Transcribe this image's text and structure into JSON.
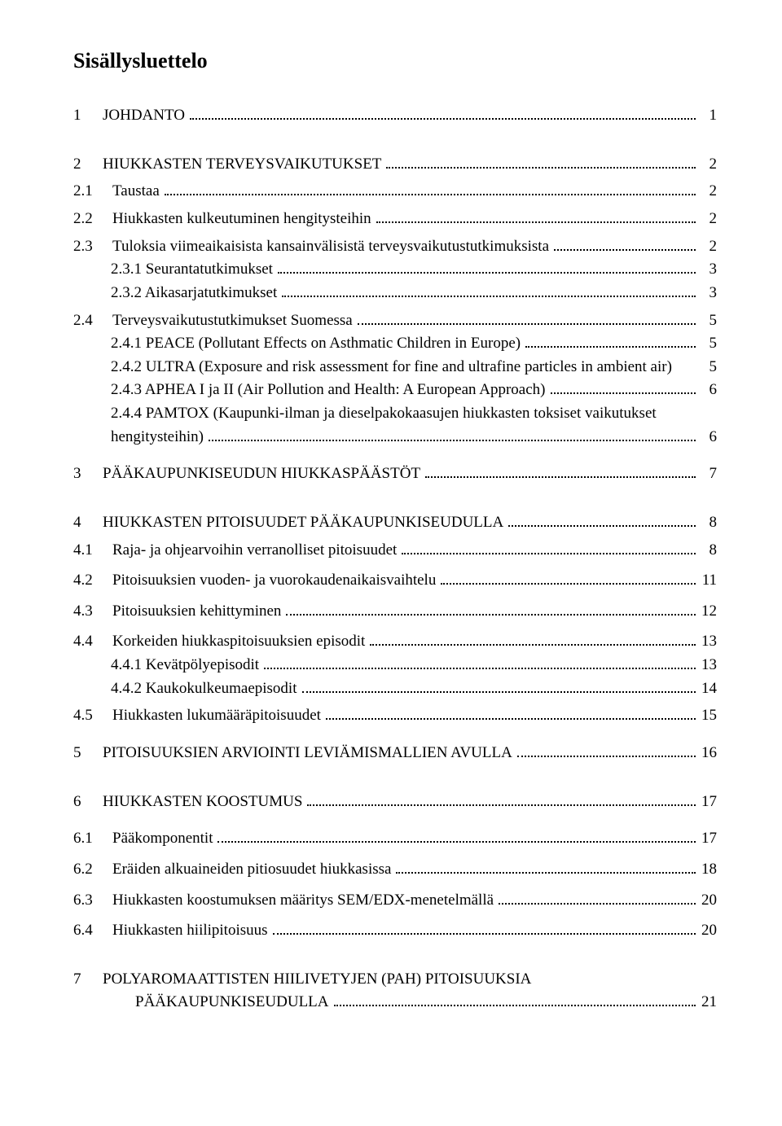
{
  "title": "Sisällysluettelo",
  "toc": [
    {
      "num": "1",
      "text": "JOHDANTO",
      "page": "1",
      "indent": 0,
      "numClass": "num",
      "gapBefore": 0,
      "gapAfter": 30
    },
    {
      "num": "2",
      "text": "HIUKKASTEN TERVEYSVAIKUTUKSET",
      "page": "2",
      "indent": 0,
      "numClass": "num",
      "gapBefore": 0,
      "gapAfter": 4
    },
    {
      "num": "2.1",
      "text": "Taustaa",
      "page": "2",
      "indent": 0,
      "numClass": "num-wide",
      "gapBefore": 0,
      "gapAfter": 4
    },
    {
      "num": "2.2",
      "text": "Hiukkasten kulkeutuminen hengitysteihin",
      "page": "2",
      "indent": 0,
      "numClass": "num-wide",
      "gapBefore": 0,
      "gapAfter": 4
    },
    {
      "num": "2.3",
      "text": "Tuloksia viimeaikaisista kansainvälisistä terveysvaikutustutkimuksista",
      "page": "2",
      "indent": 0,
      "numClass": "num-wide",
      "gapBefore": 0,
      "gapAfter": 0
    },
    {
      "num": "",
      "text": "2.3.1 Seurantatutkimukset",
      "page": "3",
      "indent": 1,
      "numClass": "",
      "gapBefore": 0,
      "gapAfter": 0
    },
    {
      "num": "",
      "text": "2.3.2 Aikasarjatutkimukset",
      "page": "3",
      "indent": 1,
      "numClass": "",
      "gapBefore": 0,
      "gapAfter": 4
    },
    {
      "num": "2.4",
      "text": "Terveysvaikutustutkimukset Suomessa",
      "page": "5",
      "indent": 0,
      "numClass": "num-wide",
      "gapBefore": 0,
      "gapAfter": 0
    },
    {
      "num": "",
      "text": "2.4.1 PEACE (Pollutant Effects on Asthmatic Children in Europe)",
      "page": "5",
      "indent": 1,
      "numClass": "",
      "gapBefore": 0,
      "gapAfter": 0
    },
    {
      "num": "",
      "text": "2.4.2 ULTRA (Exposure and risk assessment for fine and ultrafine particles in ambient air)",
      "page": "5",
      "indent": 1,
      "numClass": "",
      "gapBefore": 0,
      "gapAfter": 0,
      "noLeader": true
    },
    {
      "num": "",
      "text": "2.4.3 APHEA I ja II (Air Pollution and Health: A European Approach)",
      "page": "6",
      "indent": 1,
      "numClass": "",
      "gapBefore": 0,
      "gapAfter": 0
    },
    {
      "num": "",
      "text": "2.4.4 PAMTOX (Kaupunki-ilman ja dieselpakokaasujen hiukkasten toksiset vaikutukset",
      "page": "",
      "indent": 1,
      "numClass": "",
      "gapBefore": 0,
      "gapAfter": 0,
      "noPage": true,
      "noLeader": true
    },
    {
      "num": "",
      "text": "hengitysteihin)",
      "page": "6",
      "indent": 1,
      "numClass": "",
      "gapBefore": 0,
      "gapAfter": 16
    },
    {
      "num": "3",
      "text": "PÄÄKAUPUNKISEUDUN HIUKKASPÄÄSTÖT",
      "page": "7",
      "indent": 0,
      "numClass": "num",
      "gapBefore": 0,
      "gapAfter": 30
    },
    {
      "num": "4",
      "text": "HIUKKASTEN PITOISUUDET PÄÄKAUPUNKISEUDULLA",
      "page": "8",
      "indent": 0,
      "numClass": "num",
      "gapBefore": 0,
      "gapAfter": 4
    },
    {
      "num": "4.1",
      "text": "Raja- ja ohjearvoihin verranolliset pitoisuudet",
      "page": "8",
      "indent": 0,
      "numClass": "num-wide",
      "gapBefore": 0,
      "gapAfter": 8
    },
    {
      "num": "4.2",
      "text": "Pitoisuuksien vuoden- ja vuorokaudenaikaisvaihtelu",
      "page": "11",
      "indent": 0,
      "numClass": "num-wide",
      "gapBefore": 0,
      "gapAfter": 8
    },
    {
      "num": "4.3",
      "text": "Pitoisuuksien kehittyminen",
      "page": "12",
      "indent": 0,
      "numClass": "num-wide",
      "gapBefore": 0,
      "gapAfter": 8
    },
    {
      "num": "4.4",
      "text": "Korkeiden hiukkaspitoisuuksien episodit",
      "page": "13",
      "indent": 0,
      "numClass": "num-wide",
      "gapBefore": 0,
      "gapAfter": 0
    },
    {
      "num": "",
      "text": "4.4.1 Kevätpölyepisodit",
      "page": "13",
      "indent": 1,
      "numClass": "",
      "gapBefore": 0,
      "gapAfter": 0
    },
    {
      "num": "",
      "text": "4.4.2 Kaukokulkeumaepisodit",
      "page": "14",
      "indent": 1,
      "numClass": "",
      "gapBefore": 0,
      "gapAfter": 4
    },
    {
      "num": "4.5",
      "text": "Hiukkasten lukumääräpitoisuudet",
      "page": "15",
      "indent": 0,
      "numClass": "num-wide",
      "gapBefore": 0,
      "gapAfter": 16
    },
    {
      "num": "5",
      "text": "PITOISUUKSIEN ARVIOINTI LEVIÄMISMALLIEN AVULLA",
      "page": "16",
      "indent": 0,
      "numClass": "num",
      "gapBefore": 0,
      "gapAfter": 30
    },
    {
      "num": "6",
      "text": "HIUKKASTEN KOOSTUMUS",
      "page": "17",
      "indent": 0,
      "numClass": "num",
      "gapBefore": 0,
      "gapAfter": 16
    },
    {
      "num": "6.1",
      "text": "Pääkomponentit",
      "page": "17",
      "indent": 0,
      "numClass": "num-wide",
      "gapBefore": 0,
      "gapAfter": 8
    },
    {
      "num": "6.2",
      "text": "Eräiden alkuaineiden pitiosuudet hiukkasissa",
      "page": "18",
      "indent": 0,
      "numClass": "num-wide",
      "gapBefore": 0,
      "gapAfter": 8
    },
    {
      "num": "6.3",
      "text": "Hiukkasten koostumuksen määritys SEM/EDX-menetelmällä",
      "page": "20",
      "indent": 0,
      "numClass": "num-wide",
      "gapBefore": 0,
      "gapAfter": 8
    },
    {
      "num": "6.4",
      "text": "Hiukkasten hiilipitoisuus",
      "page": "20",
      "indent": 0,
      "numClass": "num-wide",
      "gapBefore": 0,
      "gapAfter": 30
    },
    {
      "num": "7",
      "text": "POLYAROMAATTISTEN HIILIVETYJEN (PAH) PITOISUUKSIA",
      "page": "",
      "indent": 0,
      "numClass": "num",
      "gapBefore": 0,
      "gapAfter": 0,
      "noPage": true,
      "noLeader": true
    },
    {
      "num": "",
      "text": "PÄÄKAUPUNKISEUDULLA",
      "page": "21",
      "indent": 2,
      "numClass": "",
      "gapBefore": 0,
      "gapAfter": 0
    }
  ]
}
